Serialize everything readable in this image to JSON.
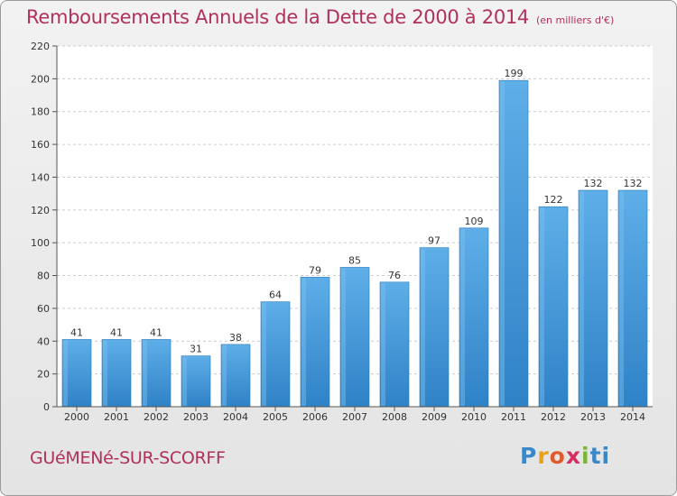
{
  "title": "Remboursements Annuels de la Dette de 2000 à 2014",
  "subtitle": "(en milliers d'€)",
  "place": "GUéMENé-SUR-SCORFF",
  "logo": [
    "P",
    "r",
    "o",
    "x",
    "i",
    "ti"
  ],
  "colors": {
    "title": "#b0305e",
    "bar_light": "#5aaae6",
    "bar_dark": "#2d7fc4"
  },
  "chart_data": {
    "type": "bar",
    "title": "Remboursements Annuels de la Dette de 2000 à 2014",
    "subtitle": "(en milliers d'€)",
    "categories": [
      "2000",
      "2001",
      "2002",
      "2003",
      "2004",
      "2005",
      "2006",
      "2007",
      "2008",
      "2009",
      "2010",
      "2011",
      "2012",
      "2013",
      "2014"
    ],
    "values": [
      41,
      41,
      41,
      31,
      38,
      64,
      79,
      85,
      76,
      97,
      109,
      199,
      122,
      132,
      132
    ],
    "ylim": [
      0,
      220
    ],
    "yticks": [
      0,
      20,
      40,
      60,
      80,
      100,
      120,
      140,
      160,
      180,
      200,
      220
    ],
    "grid": true,
    "legend": false
  }
}
